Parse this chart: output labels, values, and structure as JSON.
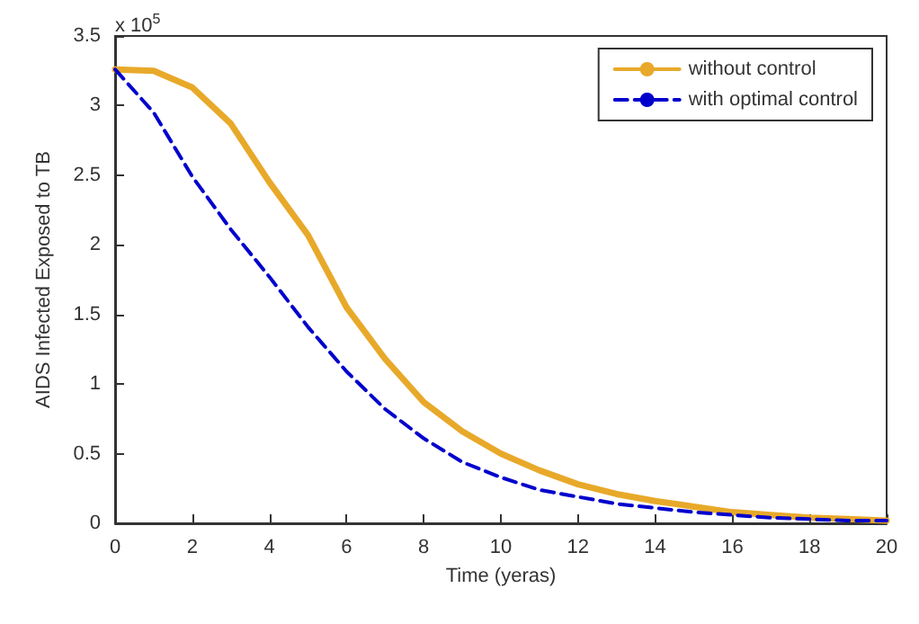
{
  "chart_data": {
    "type": "line",
    "xlabel": "Time (yeras)",
    "ylabel": "AIDS Infected Exposed to TB",
    "annotations": [
      "x 10$^{5}$"
    ],
    "x": [
      0,
      1,
      2,
      3,
      4,
      5,
      6,
      7,
      8,
      9,
      10,
      11,
      12,
      13,
      14,
      15,
      16,
      17,
      18,
      19,
      20
    ],
    "series": [
      {
        "name": "without control",
        "color": "#e8a92a",
        "line_style": "solid",
        "values": [
          3.26,
          3.25,
          3.13,
          2.87,
          2.45,
          2.07,
          1.55,
          1.18,
          0.87,
          0.66,
          0.5,
          0.38,
          0.28,
          0.21,
          0.16,
          0.12,
          0.08,
          0.06,
          0.04,
          0.03,
          0.02
        ]
      },
      {
        "name": "with optimal control",
        "color": "#0000cc",
        "line_style": "dashed",
        "values": [
          3.26,
          2.95,
          2.49,
          2.11,
          1.77,
          1.41,
          1.09,
          0.82,
          0.61,
          0.44,
          0.33,
          0.24,
          0.19,
          0.14,
          0.11,
          0.08,
          0.06,
          0.04,
          0.03,
          0.02,
          0.02
        ]
      }
    ],
    "xlim": [
      0,
      20
    ],
    "xticks": [
      0,
      2,
      4,
      6,
      8,
      10,
      12,
      14,
      16,
      18,
      20
    ],
    "ylim": [
      0,
      3.5
    ],
    "yticks": [
      0,
      0.5,
      1,
      1.5,
      2,
      2.5,
      3,
      3.5
    ],
    "grid": false,
    "legend": "top right",
    "marker": "none"
  }
}
